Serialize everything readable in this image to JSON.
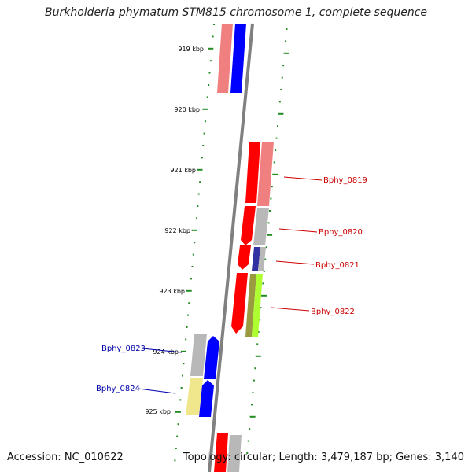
{
  "title": "Burkholderia phymatum STM815 chromosome 1, complete sequence",
  "accession": "Accession: NC_010622",
  "topology": "Topology: circular; Length: 3,479,187 bp; Genes: 3,140",
  "colors": {
    "backbone": "#808080",
    "tick": "#228b22",
    "forward_label": "#cc0000",
    "reverse_label": "#0000aa",
    "red": "#ff0000",
    "pink": "#f08080",
    "blue": "#0000ff",
    "grey": "#b0b0b0",
    "navy": "#3030a0",
    "olive": "#9a9a40",
    "lime": "#adff2f",
    "khaki": "#f0e68c"
  },
  "scale_labels": [
    "919 kbp",
    "920 kbp",
    "921 kbp",
    "922 kbp",
    "923 kbp",
    "924 kbp",
    "925 kbp"
  ],
  "gene_labels": [
    {
      "id": "forward",
      "text": "Bphy_0819"
    },
    {
      "id": "forward",
      "text": "Bphy_0820"
    },
    {
      "id": "forward",
      "text": "Bphy_0821"
    },
    {
      "id": "forward",
      "text": "Bphy_0822"
    },
    {
      "id": "reverse",
      "text": "Bphy_0823"
    },
    {
      "id": "reverse",
      "text": "Bphy_0824"
    }
  ]
}
